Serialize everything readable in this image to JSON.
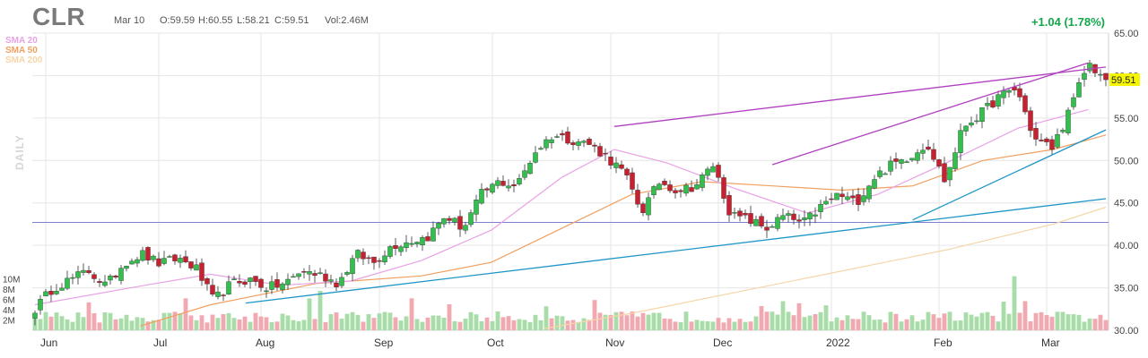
{
  "header": {
    "ticker": "CLR",
    "date": "Mar 10",
    "open": "O:59.59",
    "high": "H:60.55",
    "low": "L:58.21",
    "close": "C:59.51",
    "volume": "Vol:2.46M",
    "change": "+1.04 (1.78%)",
    "period_label": "DAILY"
  },
  "legend": [
    {
      "name": "SMA 20",
      "color": "#e8a2e6"
    },
    {
      "name": "SMA 50",
      "color": "#f0a060"
    },
    {
      "name": "SMA 200",
      "color": "#f5d6a8"
    }
  ],
  "colors": {
    "up": "#2ec24a",
    "down": "#cc1f2e",
    "vol_up": "#a8dca8",
    "vol_down": "#f2a8b0",
    "trend_blue": "#1e96c8",
    "trend_purple": "#b040c0",
    "horizontal_line": "#8080d0",
    "grid": "#e6e6e6",
    "price_badge": "#f5f500"
  },
  "chart_data": {
    "type": "candlestick",
    "x_labels": [
      "Jun",
      "Jul",
      "Aug",
      "Sep",
      "Oct",
      "Nov",
      "Dec",
      "2022",
      "Feb",
      "Mar"
    ],
    "y_ticks": [
      "65.00",
      "60.00",
      "55.00",
      "50.00",
      "45.00",
      "40.00",
      "35.00",
      "30.00"
    ],
    "y_range": [
      30,
      65
    ],
    "volume_ticks": [
      "10M",
      "8M",
      "6M",
      "4M",
      "2M"
    ],
    "volume_range_millions": [
      0,
      12
    ],
    "last_price": "59.51",
    "horizontal_line_level": 42.7,
    "weekly_closes": [
      32.5,
      35.0,
      36.0,
      37.0,
      35.2,
      38.0,
      39.0,
      37.8,
      38.5,
      37.4,
      33.5,
      35.5,
      36.0,
      35.0,
      35.5,
      37.0,
      36.5,
      35.5,
      39.0,
      38.0,
      40.0,
      40.5,
      41.0,
      43.5,
      42.0,
      46.0,
      47.5,
      47.0,
      51.0,
      53.0,
      52.5,
      52.0,
      50.5,
      48.5,
      44.0,
      47.5,
      46.5,
      47.0,
      49.5,
      43.5,
      43.0,
      42.0,
      43.5,
      42.5,
      44.5,
      46.0,
      45.0,
      48.0,
      49.5,
      50.5,
      52.0,
      47.5,
      54.0,
      55.5,
      57.5,
      58.5,
      52.5,
      51.5,
      56.0,
      61.5,
      59.51
    ],
    "sma20": [
      [
        0,
        33.0
      ],
      [
        6,
        35.2
      ],
      [
        10,
        36.6
      ],
      [
        14,
        35.3
      ],
      [
        18,
        35.8
      ],
      [
        22,
        38.2
      ],
      [
        26,
        41.8
      ],
      [
        30,
        48.0
      ],
      [
        33,
        51.3
      ],
      [
        36,
        49.7
      ],
      [
        40,
        46.6
      ],
      [
        44,
        43.8
      ],
      [
        48,
        46.0
      ],
      [
        52,
        49.8
      ],
      [
        56,
        53.8
      ],
      [
        60,
        56.0
      ]
    ],
    "sma50": [
      [
        6,
        30.5
      ],
      [
        10,
        33.0
      ],
      [
        16,
        35.5
      ],
      [
        22,
        36.4
      ],
      [
        26,
        38.0
      ],
      [
        30,
        42.0
      ],
      [
        34,
        46.0
      ],
      [
        38,
        47.5
      ],
      [
        42,
        47.0
      ],
      [
        46,
        46.5
      ],
      [
        50,
        47.0
      ],
      [
        54,
        50.0
      ],
      [
        58,
        51.3
      ],
      [
        61,
        53.0
      ]
    ],
    "sma200": [
      [
        29,
        30.2
      ],
      [
        34,
        32.0
      ],
      [
        40,
        34.5
      ],
      [
        46,
        37.0
      ],
      [
        52,
        39.5
      ],
      [
        58,
        42.5
      ],
      [
        61,
        44.5
      ]
    ],
    "trendlines": [
      {
        "color": "blue",
        "points": [
          [
            12,
            33.2
          ],
          [
            61,
            45.5
          ]
        ]
      },
      {
        "color": "blue",
        "points": [
          [
            50,
            43.0
          ],
          [
            61,
            53.6
          ]
        ]
      },
      {
        "color": "purple",
        "points": [
          [
            33,
            54.0
          ],
          [
            61,
            61.0
          ]
        ]
      },
      {
        "color": "purple",
        "points": [
          [
            42,
            49.5
          ],
          [
            60,
            61.5
          ]
        ]
      }
    ]
  }
}
